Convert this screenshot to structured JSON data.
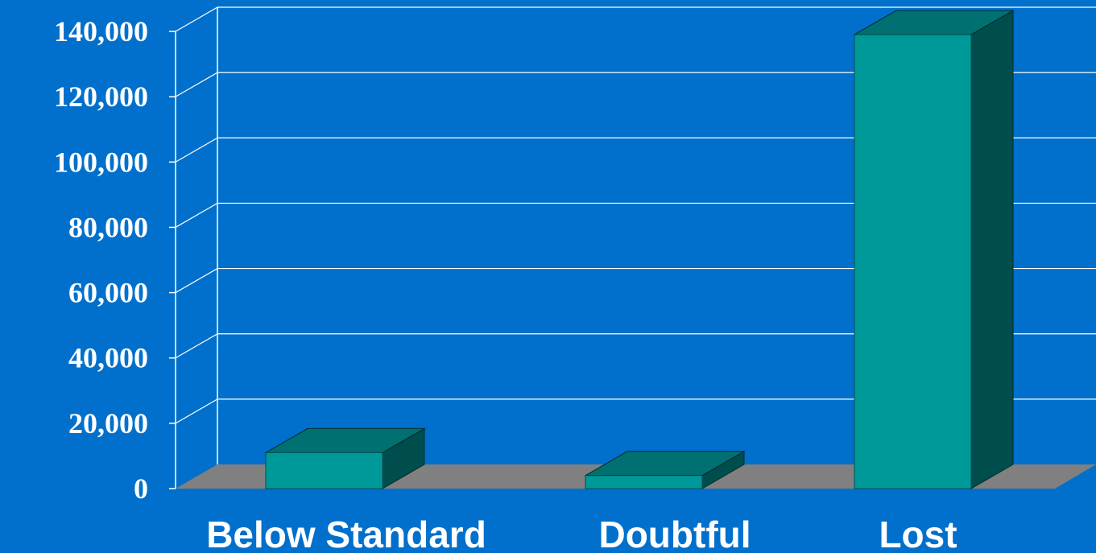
{
  "chart_data": {
    "type": "bar",
    "categories": [
      "Below Standard",
      "Doubtful",
      "Lost"
    ],
    "values": [
      11000,
      4000,
      139000
    ],
    "ylim": [
      0,
      140000
    ],
    "yticks": [
      "0",
      "20,000",
      "40,000",
      "60,000",
      "80,000",
      "100,000",
      "120,000",
      "140,000"
    ],
    "title": "",
    "xlabel": "",
    "ylabel": "",
    "grid": true,
    "legend": "none",
    "style": "3d"
  },
  "colors": {
    "background": "#0070cc",
    "bar_front": "#009999",
    "bar_top": "#007070",
    "bar_side": "#004d4d",
    "floor": "#808080",
    "gridline": "#ffffff",
    "text": "#ffffff"
  }
}
